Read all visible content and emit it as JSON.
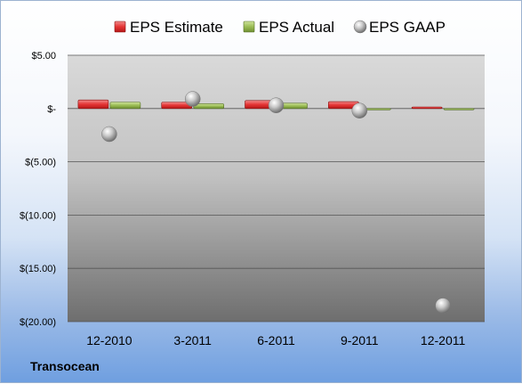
{
  "company": "Transocean",
  "chart_data": {
    "type": "bar",
    "categories": [
      "12-2010",
      "3-2011",
      "6-2011",
      "9-2011",
      "12-2011"
    ],
    "series": [
      {
        "name": "EPS Estimate",
        "kind": "bar",
        "color": "#d9262b",
        "values": [
          0.8,
          0.6,
          0.75,
          0.65,
          0.15
        ]
      },
      {
        "name": "EPS Actual",
        "kind": "bar",
        "color": "#8fb050",
        "values": [
          0.6,
          0.45,
          0.5,
          0.0,
          0.0
        ]
      },
      {
        "name": "EPS GAAP",
        "kind": "scatter",
        "color": "#b8b8b8",
        "values": [
          -2.4,
          0.9,
          0.3,
          -0.2,
          -18.5
        ]
      }
    ],
    "ylim": [
      -20,
      5
    ],
    "yticks": [
      5,
      0,
      -5,
      -10,
      -15,
      -20
    ],
    "ytick_labels": [
      "$5.00",
      "$-",
      "$(5.00)",
      "$(10.00)",
      "$(15.00)",
      "$(20.00)"
    ],
    "grid": true,
    "legend_position": "top"
  }
}
